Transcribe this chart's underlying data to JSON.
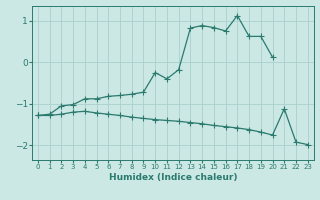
{
  "xlabel": "Humidex (Indice chaleur)",
  "background_color": "#cce8e5",
  "line_color": "#2a7a6e",
  "grid_color": "#aacfcc",
  "xlim": [
    -0.5,
    23.5
  ],
  "ylim": [
    -2.35,
    1.35
  ],
  "xticks": [
    0,
    1,
    2,
    3,
    4,
    5,
    6,
    7,
    8,
    9,
    10,
    11,
    12,
    13,
    14,
    15,
    16,
    17,
    18,
    19,
    20,
    21,
    22,
    23
  ],
  "yticks": [
    -2,
    -1,
    0,
    1
  ],
  "upper_x": [
    0,
    1,
    2,
    3,
    4,
    5,
    6,
    7,
    8,
    9,
    10,
    11,
    12,
    13,
    14,
    15,
    16,
    17,
    18,
    19,
    20
  ],
  "upper_y": [
    -1.28,
    -1.25,
    -1.05,
    -1.02,
    -0.88,
    -0.88,
    -0.82,
    -0.8,
    -0.77,
    -0.72,
    -0.25,
    -0.4,
    -0.18,
    0.82,
    0.88,
    0.83,
    0.75,
    1.12,
    0.62,
    0.62,
    0.12
  ],
  "lower_x": [
    0,
    1,
    2,
    3,
    4,
    5,
    6,
    7,
    8,
    9,
    10,
    11,
    12,
    13,
    14,
    15,
    16,
    17,
    18,
    19,
    20,
    21,
    22,
    23
  ],
  "lower_y": [
    -1.28,
    -1.28,
    -1.25,
    -1.2,
    -1.18,
    -1.22,
    -1.25,
    -1.28,
    -1.32,
    -1.35,
    -1.38,
    -1.4,
    -1.42,
    -1.45,
    -1.48,
    -1.52,
    -1.55,
    -1.58,
    -1.62,
    -1.68,
    -1.75,
    -1.12,
    -1.92,
    -1.98
  ],
  "markersize": 2.5,
  "linewidth": 0.9
}
